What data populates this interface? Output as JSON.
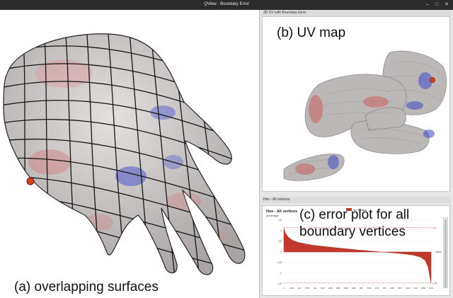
{
  "window": {
    "title": "QView - Boundary Error",
    "minimize": "–",
    "maximize": "□",
    "close": "✕"
  },
  "captions": {
    "a": "(a) overlapping surfaces",
    "b": "(b) UV map",
    "c_line1": "(c) error plot for all",
    "c_line2": "boundary vertices"
  },
  "uv_window": {
    "title": "3D UV with Boundary Error"
  },
  "plot_window": {
    "title": "Hex - All vertices",
    "plot_title": "Hex - All vertices",
    "y_axis_name": "percentage",
    "x_axis_name": "vertex",
    "legend": "3D Surface",
    "y_ticks": [
      "1.5",
      "1",
      "0.5",
      "0",
      "-0.5",
      "-1",
      "-1.5"
    ],
    "x_ticks": [
      "1",
      "1509",
      "132",
      "1783",
      "742",
      "1322",
      "2239",
      "4696",
      "6905",
      "1994",
      "595",
      "5910",
      "1672",
      "869",
      "4096",
      "9807",
      "4142",
      "1212",
      "2086",
      "2161"
    ],
    "max_marker": "1.14",
    "min_marker": "-1.46"
  },
  "chart_data": {
    "type": "area",
    "title": "Hex - All vertices",
    "xlabel": "vertex",
    "ylabel": "percentage",
    "ylim": [
      -1.5,
      1.5
    ],
    "series": [
      {
        "name": "3D Surface",
        "color": "#c0392b",
        "description_points_x": [
          0,
          0.01,
          0.03,
          0.06,
          0.1,
          0.15,
          0.2,
          0.3,
          0.4,
          0.5,
          0.6,
          0.7,
          0.8,
          0.88,
          0.93,
          0.96,
          0.98,
          0.99,
          1.0
        ],
        "values": [
          1.14,
          0.9,
          0.7,
          0.55,
          0.45,
          0.38,
          0.32,
          0.24,
          0.17,
          0.1,
          0.04,
          -0.02,
          -0.08,
          -0.15,
          -0.25,
          -0.4,
          -0.7,
          -1.1,
          -1.46
        ]
      }
    ]
  },
  "colors": {
    "error_fill": "#c0392b",
    "max_line": "#d04030",
    "mesh_base": "#c9c3c3"
  },
  "icons": {
    "vertex_marker": "red-dot-icon"
  }
}
